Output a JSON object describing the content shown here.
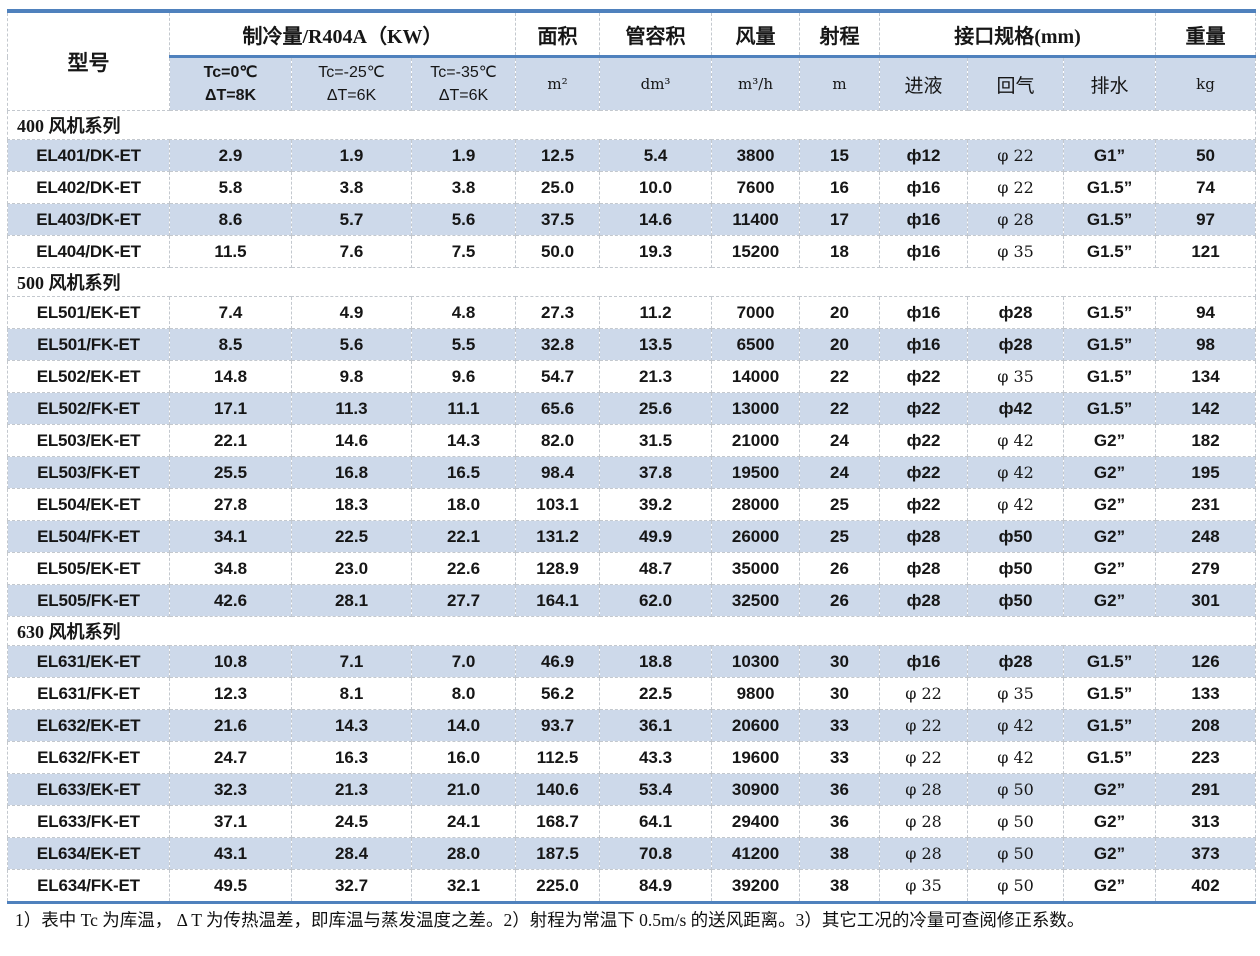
{
  "table": {
    "header": {
      "model_label": "型号",
      "cooling_group_label": "制冷量/R404A（KW）",
      "cooling_conditions": [
        {
          "line1": "Tc=0℃",
          "line2": "ΔT=8K"
        },
        {
          "line1": "Tc=-25℃",
          "line2": "ΔT=6K"
        },
        {
          "line1": "Tc=-35℃",
          "line2": "ΔT=6K"
        }
      ],
      "area_label": "面积",
      "area_unit": "m²",
      "tube_volume_label": "管容积",
      "tube_volume_unit": "dm³",
      "airflow_label": "风量",
      "airflow_unit": "m³/h",
      "throw_label": "射程",
      "throw_unit": "m",
      "ports_group_label": "接口规格(mm)",
      "port_labels": [
        "进液",
        "回气",
        "排水"
      ],
      "weight_label": "重量",
      "weight_unit": "kg"
    },
    "sections": [
      {
        "title": "400 风机系列",
        "rows": [
          {
            "model": "EL401/DK-ET",
            "cooling": [
              "2.9",
              "1.9",
              "1.9"
            ],
            "area": "12.5",
            "tube_volume": "5.4",
            "airflow": "3800",
            "throw": "15",
            "liquid_in": "ф12",
            "gas_return": "φ 22",
            "drain": "G1”",
            "weight": "50",
            "shaded": true,
            "serif_liquid": false,
            "serif_gas": true
          },
          {
            "model": "EL402/DK-ET",
            "cooling": [
              "5.8",
              "3.8",
              "3.8"
            ],
            "area": "25.0",
            "tube_volume": "10.0",
            "airflow": "7600",
            "throw": "16",
            "liquid_in": "ф16",
            "gas_return": "φ 22",
            "drain": "G1.5”",
            "weight": "74",
            "shaded": false,
            "serif_liquid": false,
            "serif_gas": true
          },
          {
            "model": "EL403/DK-ET",
            "cooling": [
              "8.6",
              "5.7",
              "5.6"
            ],
            "area": "37.5",
            "tube_volume": "14.6",
            "airflow": "11400",
            "throw": "17",
            "liquid_in": "ф16",
            "gas_return": "φ 28",
            "drain": "G1.5”",
            "weight": "97",
            "shaded": true,
            "serif_liquid": false,
            "serif_gas": true
          },
          {
            "model": "EL404/DK-ET",
            "cooling": [
              "11.5",
              "7.6",
              "7.5"
            ],
            "area": "50.0",
            "tube_volume": "19.3",
            "airflow": "15200",
            "throw": "18",
            "liquid_in": "ф16",
            "gas_return": "φ 35",
            "drain": "G1.5”",
            "weight": "121",
            "shaded": false,
            "serif_liquid": false,
            "serif_gas": true
          }
        ]
      },
      {
        "title": "500 风机系列",
        "rows": [
          {
            "model": "EL501/EK-ET",
            "cooling": [
              "7.4",
              "4.9",
              "4.8"
            ],
            "area": "27.3",
            "tube_volume": "11.2",
            "airflow": "7000",
            "throw": "20",
            "liquid_in": "ф16",
            "gas_return": "ф28",
            "drain": "G1.5”",
            "weight": "94",
            "shaded": false,
            "serif_liquid": false,
            "serif_gas": false
          },
          {
            "model": "EL501/FK-ET",
            "cooling": [
              "8.5",
              "5.6",
              "5.5"
            ],
            "area": "32.8",
            "tube_volume": "13.5",
            "airflow": "6500",
            "throw": "20",
            "liquid_in": "ф16",
            "gas_return": "ф28",
            "drain": "G1.5”",
            "weight": "98",
            "shaded": true,
            "serif_liquid": false,
            "serif_gas": false
          },
          {
            "model": "EL502/EK-ET",
            "cooling": [
              "14.8",
              "9.8",
              "9.6"
            ],
            "area": "54.7",
            "tube_volume": "21.3",
            "airflow": "14000",
            "throw": "22",
            "liquid_in": "ф22",
            "gas_return": "φ 35",
            "drain": "G1.5”",
            "weight": "134",
            "shaded": false,
            "serif_liquid": false,
            "serif_gas": true
          },
          {
            "model": "EL502/FK-ET",
            "cooling": [
              "17.1",
              "11.3",
              "11.1"
            ],
            "area": "65.6",
            "tube_volume": "25.6",
            "airflow": "13000",
            "throw": "22",
            "liquid_in": "ф22",
            "gas_return": "ф42",
            "drain": "G1.5”",
            "weight": "142",
            "shaded": true,
            "serif_liquid": false,
            "serif_gas": false
          },
          {
            "model": "EL503/EK-ET",
            "cooling": [
              "22.1",
              "14.6",
              "14.3"
            ],
            "area": "82.0",
            "tube_volume": "31.5",
            "airflow": "21000",
            "throw": "24",
            "liquid_in": "ф22",
            "gas_return": "φ 42",
            "drain": "G2”",
            "weight": "182",
            "shaded": false,
            "serif_liquid": false,
            "serif_gas": true
          },
          {
            "model": "EL503/FK-ET",
            "cooling": [
              "25.5",
              "16.8",
              "16.5"
            ],
            "area": "98.4",
            "tube_volume": "37.8",
            "airflow": "19500",
            "throw": "24",
            "liquid_in": "ф22",
            "gas_return": "φ 42",
            "drain": "G2”",
            "weight": "195",
            "shaded": true,
            "serif_liquid": false,
            "serif_gas": true
          },
          {
            "model": "EL504/EK-ET",
            "cooling": [
              "27.8",
              "18.3",
              "18.0"
            ],
            "area": "103.1",
            "tube_volume": "39.2",
            "airflow": "28000",
            "throw": "25",
            "liquid_in": "ф22",
            "gas_return": "φ 42",
            "drain": "G2”",
            "weight": "231",
            "shaded": false,
            "serif_liquid": false,
            "serif_gas": true
          },
          {
            "model": "EL504/FK-ET",
            "cooling": [
              "34.1",
              "22.5",
              "22.1"
            ],
            "area": "131.2",
            "tube_volume": "49.9",
            "airflow": "26000",
            "throw": "25",
            "liquid_in": "ф28",
            "gas_return": "ф50",
            "drain": "G2”",
            "weight": "248",
            "shaded": true,
            "serif_liquid": false,
            "serif_gas": false
          },
          {
            "model": "EL505/EK-ET",
            "cooling": [
              "34.8",
              "23.0",
              "22.6"
            ],
            "area": "128.9",
            "tube_volume": "48.7",
            "airflow": "35000",
            "throw": "26",
            "liquid_in": "ф28",
            "gas_return": "ф50",
            "drain": "G2”",
            "weight": "279",
            "shaded": false,
            "serif_liquid": false,
            "serif_gas": false
          },
          {
            "model": "EL505/FK-ET",
            "cooling": [
              "42.6",
              "28.1",
              "27.7"
            ],
            "area": "164.1",
            "tube_volume": "62.0",
            "airflow": "32500",
            "throw": "26",
            "liquid_in": "ф28",
            "gas_return": "ф50",
            "drain": "G2”",
            "weight": "301",
            "shaded": true,
            "serif_liquid": false,
            "serif_gas": false
          }
        ]
      },
      {
        "title": "630 风机系列",
        "rows": [
          {
            "model": "EL631/EK-ET",
            "cooling": [
              "10.8",
              "7.1",
              "7.0"
            ],
            "area": "46.9",
            "tube_volume": "18.8",
            "airflow": "10300",
            "throw": "30",
            "liquid_in": "ф16",
            "gas_return": "ф28",
            "drain": "G1.5”",
            "weight": "126",
            "shaded": true,
            "serif_liquid": false,
            "serif_gas": false
          },
          {
            "model": "EL631/FK-ET",
            "cooling": [
              "12.3",
              "8.1",
              "8.0"
            ],
            "area": "56.2",
            "tube_volume": "22.5",
            "airflow": "9800",
            "throw": "30",
            "liquid_in": "φ 22",
            "gas_return": "φ 35",
            "drain": "G1.5”",
            "weight": "133",
            "shaded": false,
            "serif_liquid": true,
            "serif_gas": true
          },
          {
            "model": "EL632/EK-ET",
            "cooling": [
              "21.6",
              "14.3",
              "14.0"
            ],
            "area": "93.7",
            "tube_volume": "36.1",
            "airflow": "20600",
            "throw": "33",
            "liquid_in": "φ 22",
            "gas_return": "φ 42",
            "drain": "G1.5”",
            "weight": "208",
            "shaded": true,
            "serif_liquid": true,
            "serif_gas": true
          },
          {
            "model": "EL632/FK-ET",
            "cooling": [
              "24.7",
              "16.3",
              "16.0"
            ],
            "area": "112.5",
            "tube_volume": "43.3",
            "airflow": "19600",
            "throw": "33",
            "liquid_in": "φ 22",
            "gas_return": "φ 42",
            "drain": "G1.5”",
            "weight": "223",
            "shaded": false,
            "serif_liquid": true,
            "serif_gas": true
          },
          {
            "model": "EL633/EK-ET",
            "cooling": [
              "32.3",
              "21.3",
              "21.0"
            ],
            "area": "140.6",
            "tube_volume": "53.4",
            "airflow": "30900",
            "throw": "36",
            "liquid_in": "φ 28",
            "gas_return": "φ 50",
            "drain": "G2”",
            "weight": "291",
            "shaded": true,
            "serif_liquid": true,
            "serif_gas": true
          },
          {
            "model": "EL633/FK-ET",
            "cooling": [
              "37.1",
              "24.5",
              "24.1"
            ],
            "area": "168.7",
            "tube_volume": "64.1",
            "airflow": "29400",
            "throw": "36",
            "liquid_in": "φ 28",
            "gas_return": "φ 50",
            "drain": "G2”",
            "weight": "313",
            "shaded": false,
            "serif_liquid": true,
            "serif_gas": true
          },
          {
            "model": "EL634/EK-ET",
            "cooling": [
              "43.1",
              "28.4",
              "28.0"
            ],
            "area": "187.5",
            "tube_volume": "70.8",
            "airflow": "41200",
            "throw": "38",
            "liquid_in": "φ 28",
            "gas_return": "φ 50",
            "drain": "G2”",
            "weight": "373",
            "shaded": true,
            "serif_liquid": true,
            "serif_gas": true
          },
          {
            "model": "EL634/FK-ET",
            "cooling": [
              "49.5",
              "32.7",
              "32.1"
            ],
            "area": "225.0",
            "tube_volume": "84.9",
            "airflow": "39200",
            "throw": "38",
            "liquid_in": "φ 35",
            "gas_return": "φ 50",
            "drain": "G2”",
            "weight": "402",
            "shaded": false,
            "serif_liquid": true,
            "serif_gas": true
          }
        ]
      }
    ]
  },
  "notes": "1）表中 Tc 为库温， Δ T 为传热温差，即库温与蒸发温度之差。2）射程为常温下 0.5m/s 的送风距离。3）其它工况的冷量可查阅修正系数。",
  "colors": {
    "accent_border": "#4f81bd",
    "band_fill": "#cdd9ea"
  }
}
